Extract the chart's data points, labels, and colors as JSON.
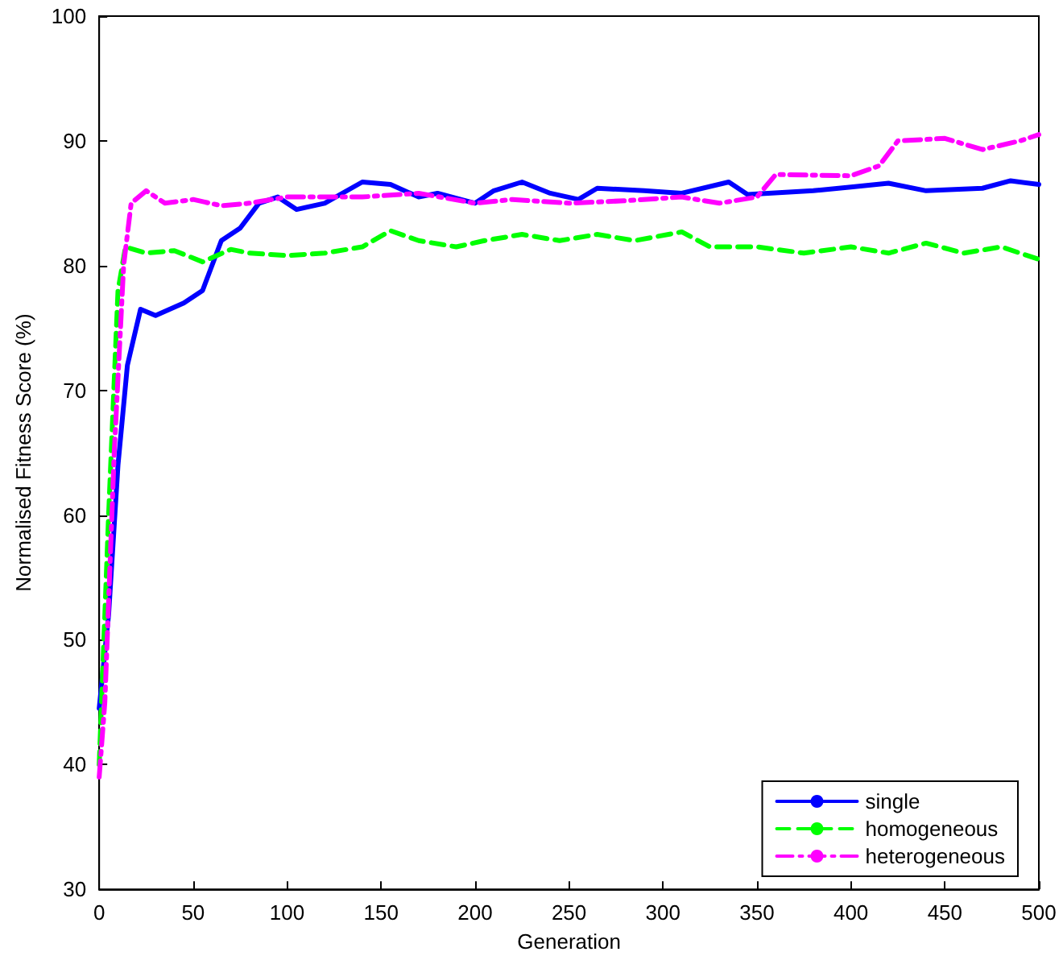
{
  "chart_data": {
    "type": "line",
    "xlabel": "Generation",
    "ylabel": "Normalised Fitness Score (%)",
    "xlim": [
      0,
      500
    ],
    "xticks": [
      0,
      50,
      100,
      150,
      200,
      250,
      300,
      350,
      400,
      450,
      500
    ],
    "ylim": [
      30,
      100
    ],
    "yticks": [
      30,
      40,
      50,
      60,
      70,
      80,
      90,
      100
    ],
    "grid": false,
    "legend": "bottom right",
    "marker": "none",
    "series": [
      {
        "name": "single",
        "color": "#0000ff",
        "line_style": "solid",
        "x": [
          0,
          5,
          10,
          15,
          22,
          30,
          45,
          55,
          65,
          75,
          85,
          95,
          105,
          120,
          140,
          155,
          170,
          180,
          200,
          210,
          225,
          240,
          255,
          265,
          290,
          310,
          335,
          345,
          380,
          400,
          420,
          440,
          470,
          485,
          500
        ],
        "values": [
          44.5,
          52,
          64,
          72,
          76.5,
          76,
          77,
          78,
          82,
          83,
          85,
          85.5,
          84.5,
          85,
          86.7,
          86.5,
          85.5,
          85.8,
          85,
          86,
          86.7,
          85.8,
          85.3,
          86.2,
          86,
          85.8,
          86.7,
          85.7,
          86,
          86.3,
          86.6,
          86,
          86.2,
          86.8,
          86.5
        ]
      },
      {
        "name": "homogeneous",
        "color": "#00ff00",
        "line_style": "dashed",
        "x": [
          0,
          5,
          10,
          14,
          25,
          40,
          55,
          70,
          80,
          100,
          120,
          140,
          155,
          170,
          190,
          205,
          225,
          245,
          265,
          285,
          310,
          325,
          350,
          375,
          400,
          420,
          440,
          460,
          480,
          500
        ],
        "values": [
          40,
          60,
          78,
          81.5,
          81,
          81.2,
          80.3,
          81.3,
          81,
          80.8,
          81,
          81.5,
          82.8,
          82,
          81.5,
          82,
          82.5,
          82,
          82.5,
          82,
          82.7,
          81.5,
          81.5,
          81,
          81.5,
          81,
          81.8,
          81,
          81.5,
          80.5
        ]
      },
      {
        "name": "heterogeneous",
        "color": "#ff00ff",
        "line_style": "dashdot",
        "x": [
          0,
          3,
          8,
          13,
          17,
          25,
          35,
          50,
          65,
          80,
          100,
          140,
          170,
          200,
          220,
          250,
          280,
          310,
          330,
          350,
          360,
          400,
          415,
          425,
          450,
          470,
          490,
          500
        ],
        "values": [
          39,
          45,
          65,
          80,
          85,
          86,
          85,
          85.3,
          84.8,
          85,
          85.5,
          85.5,
          85.8,
          85,
          85.3,
          85,
          85.2,
          85.5,
          85,
          85.5,
          87.3,
          87.2,
          88,
          90,
          90.2,
          89.3,
          90,
          90.5
        ]
      }
    ]
  }
}
